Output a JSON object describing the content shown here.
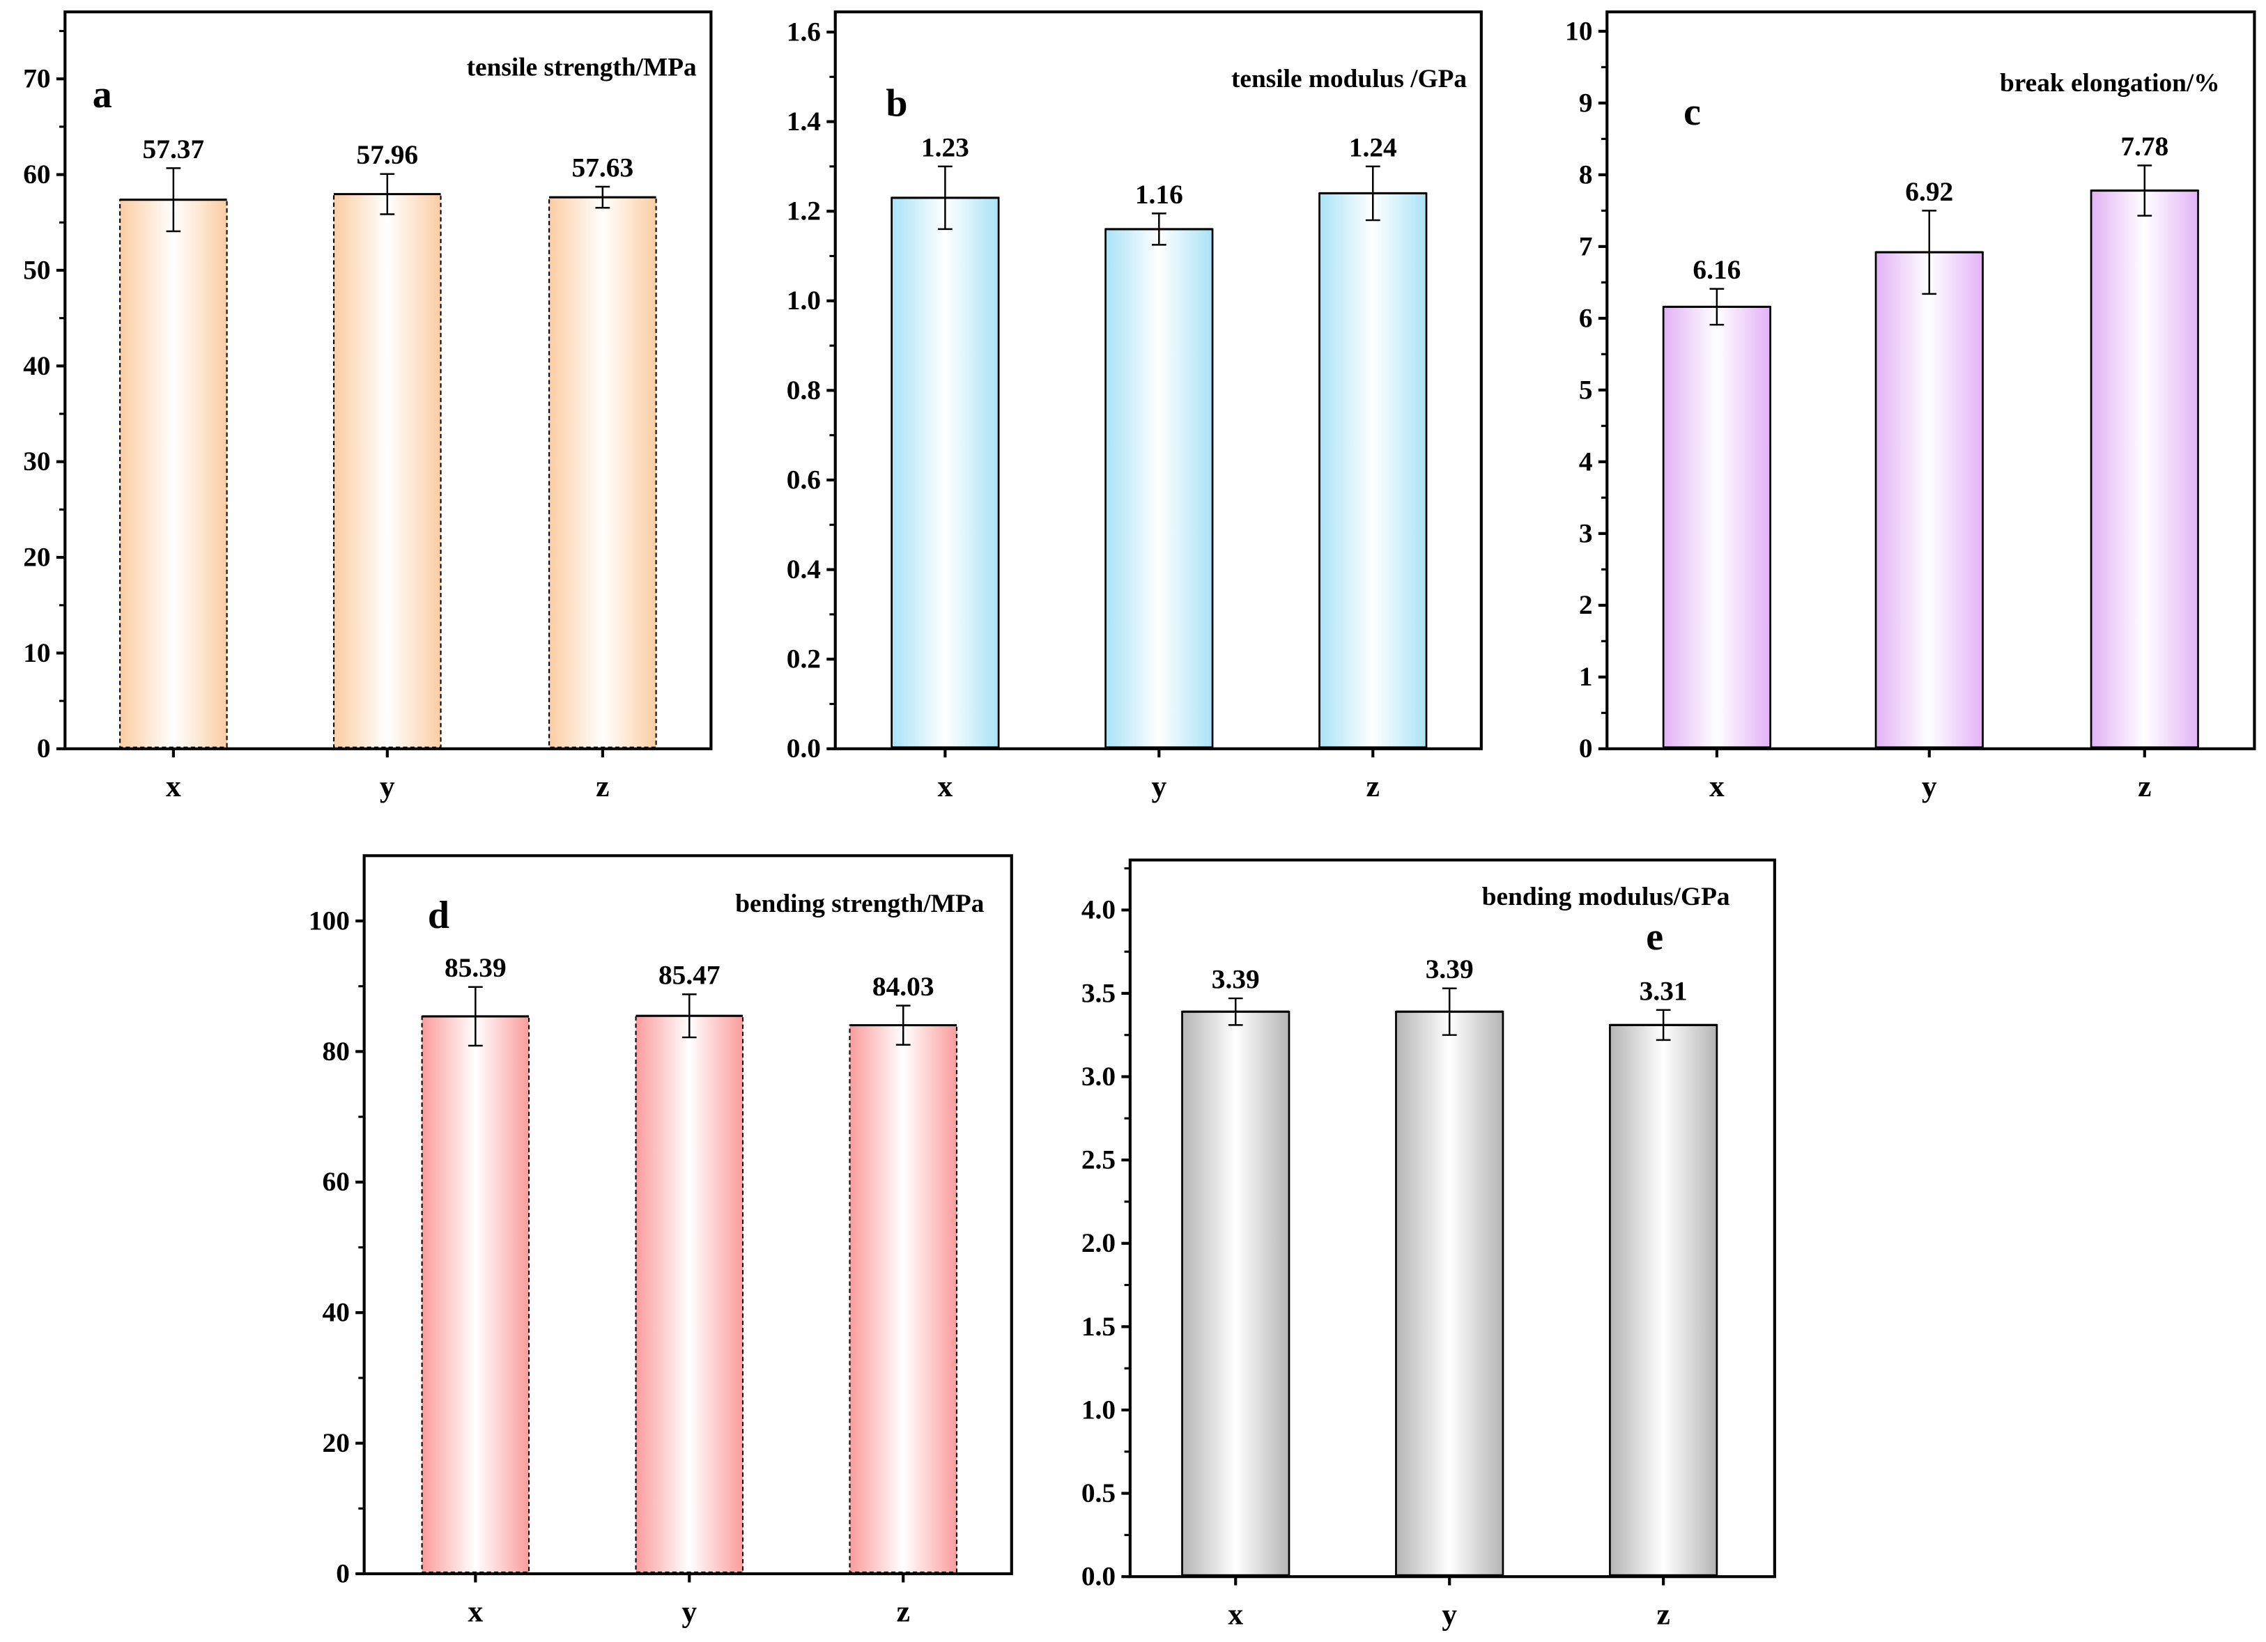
{
  "chart_data": [
    {
      "type": "bar",
      "panel_label": "a",
      "title": "tensile strength/MPa",
      "categories": [
        "x",
        "y",
        "z"
      ],
      "values": [
        57.37,
        57.96,
        57.63
      ],
      "value_labels": [
        "57.37",
        "57.96",
        "57.63"
      ],
      "errors": [
        3.3,
        2.1,
        1.1
      ],
      "ylim": [
        0,
        77
      ],
      "yticks": [
        0,
        10,
        20,
        30,
        40,
        50,
        60,
        70
      ],
      "yticklabels": [
        "0",
        "10",
        "20",
        "30",
        "40",
        "50",
        "60",
        "70"
      ],
      "minor_step": 5,
      "color": "#fccda3",
      "border": "dashed"
    },
    {
      "type": "bar",
      "panel_label": "b",
      "title": "tensile modulus /GPa",
      "categories": [
        "x",
        "y",
        "z"
      ],
      "values": [
        1.23,
        1.16,
        1.24
      ],
      "value_labels": [
        "1.23",
        "1.16",
        "1.24"
      ],
      "errors": [
        0.07,
        0.035,
        0.06
      ],
      "ylim": [
        0,
        1.645
      ],
      "yticks": [
        0,
        0.2,
        0.4,
        0.6,
        0.8,
        1.0,
        1.2,
        1.4,
        1.6
      ],
      "yticklabels": [
        "0.0",
        "0.2",
        "0.4",
        "0.6",
        "0.8",
        "1.0",
        "1.2",
        "1.4",
        "1.6"
      ],
      "minor_step": 0.1,
      "color": "#a9e3f7",
      "border": "solid"
    },
    {
      "type": "bar",
      "panel_label": "c",
      "title": "break elongation/%",
      "categories": [
        "x",
        "y",
        "z"
      ],
      "values": [
        6.16,
        6.92,
        7.78
      ],
      "value_labels": [
        "6.16",
        "6.92",
        "7.78"
      ],
      "errors": [
        0.25,
        0.58,
        0.35
      ],
      "ylim": [
        0,
        10.27
      ],
      "yticks": [
        0,
        1,
        2,
        3,
        4,
        5,
        6,
        7,
        8,
        9,
        10
      ],
      "yticklabels": [
        "0",
        "1",
        "2",
        "3",
        "4",
        "5",
        "6",
        "7",
        "8",
        "9",
        "10"
      ],
      "minor_step": 0.5,
      "color": "#e3b2f7",
      "border": "solid"
    },
    {
      "type": "bar",
      "panel_label": "d",
      "title": "bending strength/MPa",
      "categories": [
        "x",
        "y",
        "z"
      ],
      "values": [
        85.39,
        85.47,
        84.03
      ],
      "value_labels": [
        "85.39",
        "85.47",
        "84.03"
      ],
      "errors": [
        4.5,
        3.3,
        3.0
      ],
      "ylim": [
        0,
        110
      ],
      "yticks": [
        0,
        20,
        40,
        60,
        80,
        100
      ],
      "yticklabels": [
        "0",
        "20",
        "40",
        "60",
        "80",
        "100"
      ],
      "minor_step": 10,
      "color": "#fb9c9c",
      "border": "dashed"
    },
    {
      "type": "bar",
      "panel_label": "e",
      "title": "bending modulus/GPa",
      "categories": [
        "x",
        "y",
        "z"
      ],
      "values": [
        3.39,
        3.39,
        3.31
      ],
      "value_labels": [
        "3.39",
        "3.39",
        "3.31"
      ],
      "errors": [
        0.08,
        0.14,
        0.09
      ],
      "ylim": [
        0,
        4.3
      ],
      "yticks": [
        0,
        0.5,
        1.0,
        1.5,
        2.0,
        2.5,
        3.0,
        3.5,
        4.0
      ],
      "yticklabels": [
        "0.0",
        "0.5",
        "1.0",
        "1.5",
        "2.0",
        "2.5",
        "3.0",
        "3.5",
        "4.0"
      ],
      "minor_step": 0.25,
      "color": "#b5b5b5",
      "border": "solid"
    }
  ]
}
